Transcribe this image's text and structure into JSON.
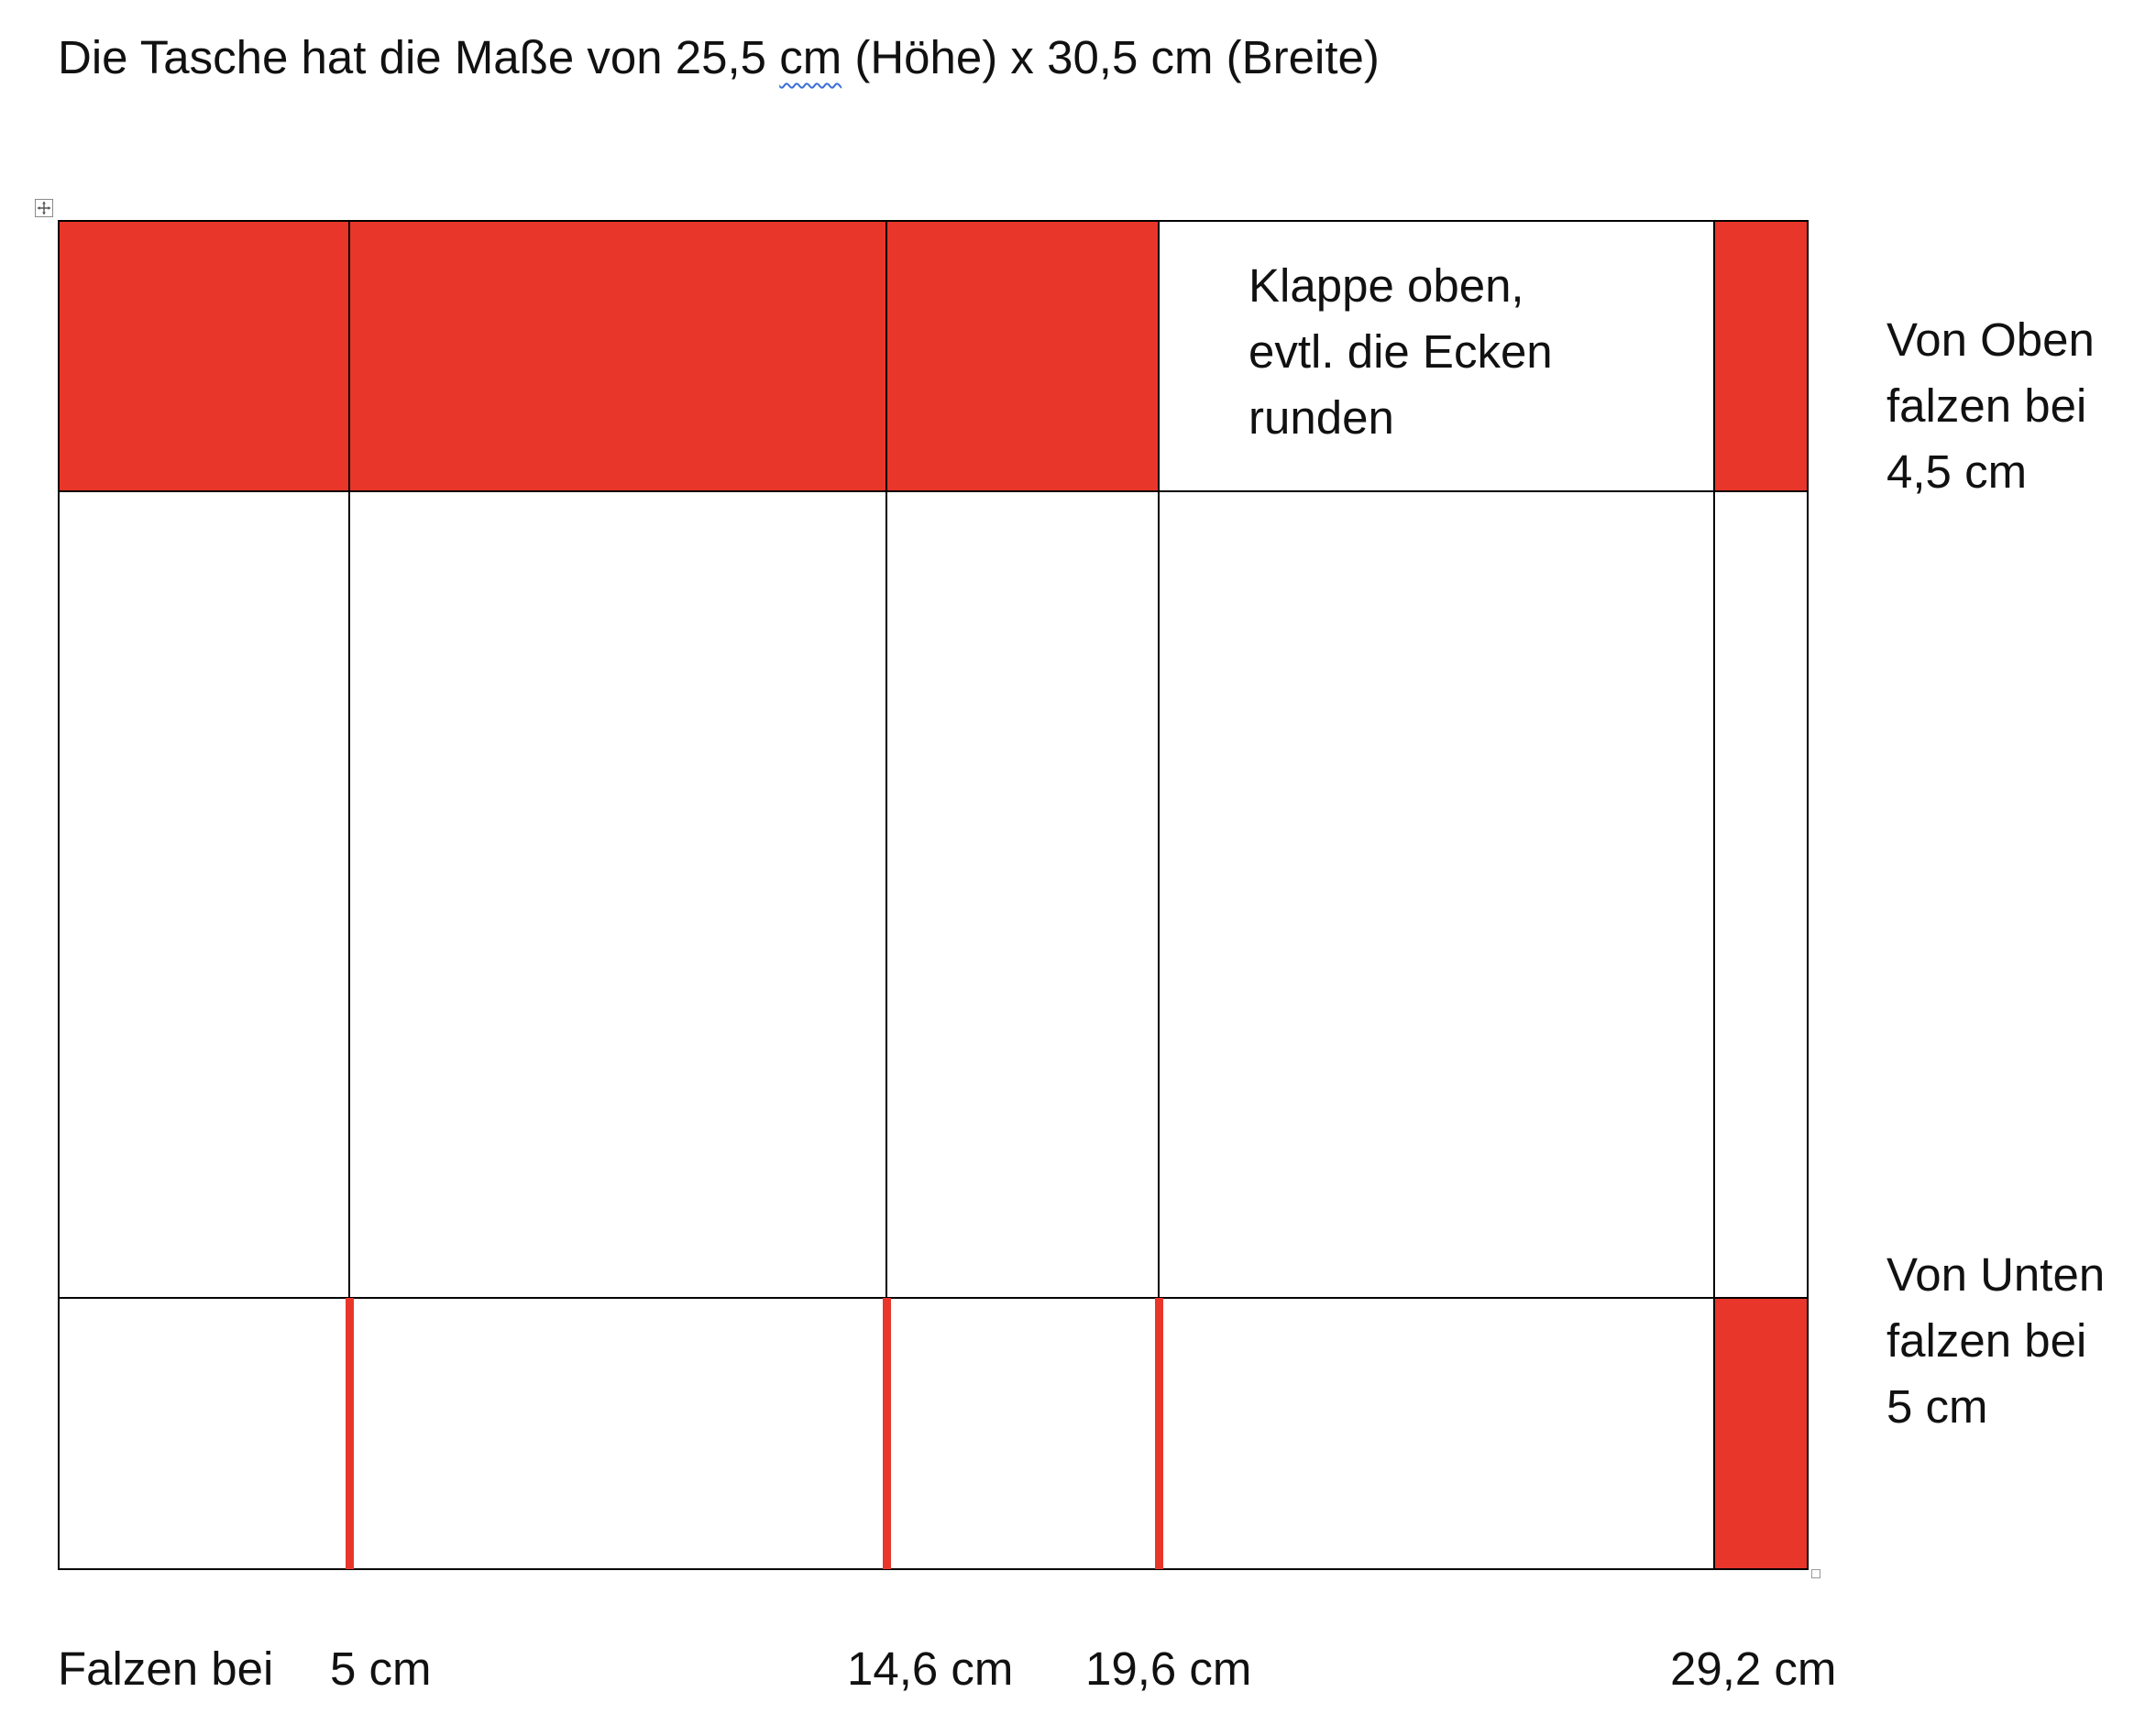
{
  "title": {
    "prefix": "Die Tasche hat die Maße von 25,5 ",
    "marked": " cm",
    "suffix": " (Höhe) x 30,5 cm (Breite)"
  },
  "table": {
    "flap_cell_text": "Klappe oben,\nevtl. die Ecken\nrunden",
    "fill_color": "#e8362a"
  },
  "side_notes": {
    "top": "Von Oben\nfalzen bei\n4,5 cm",
    "bottom": "Von Unten\nfalzen bei\n5 cm"
  },
  "bottom_labels": {
    "prefix": "Falzen bei",
    "fold_1": "5 cm",
    "fold_2": "14,6 cm",
    "fold_3": "19,6 cm",
    "fold_4": "29,2 cm"
  }
}
